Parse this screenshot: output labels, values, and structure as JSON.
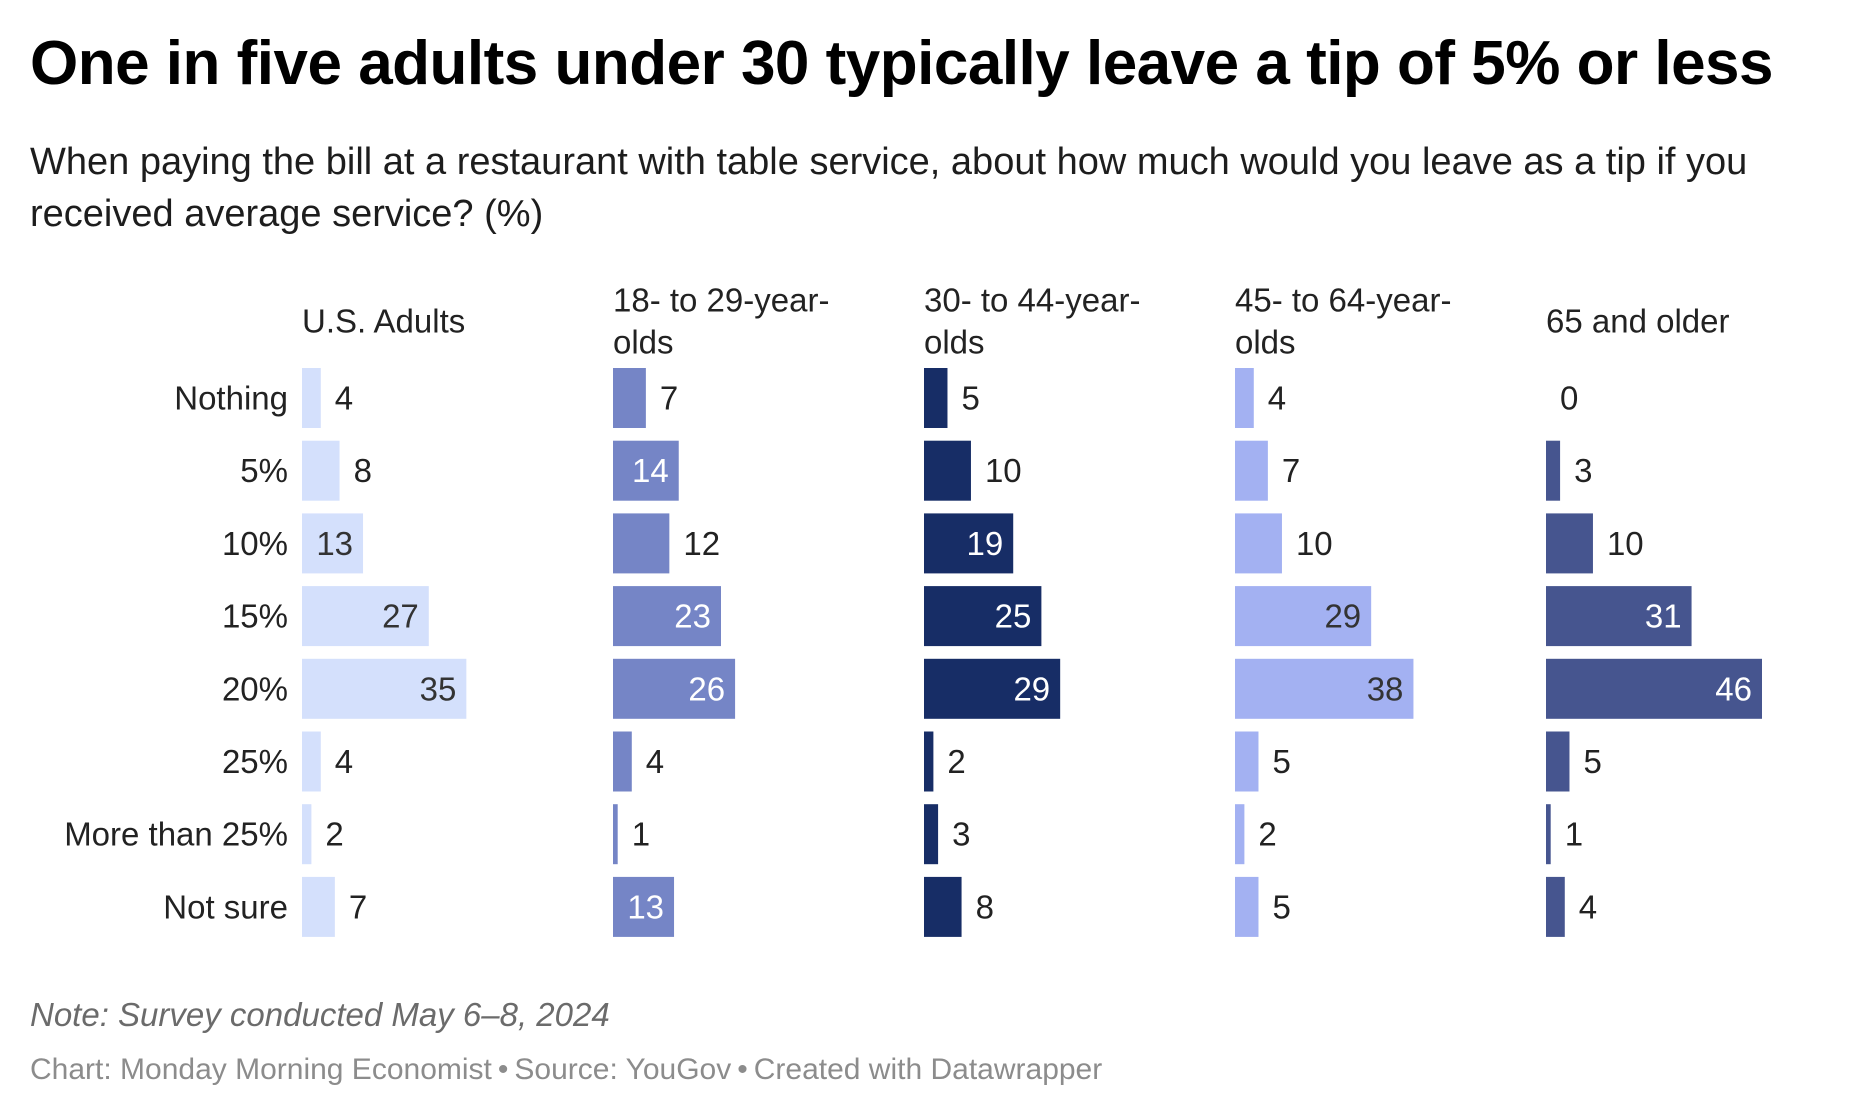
{
  "title": "One in five adults under 30 typically leave a tip of 5% or less",
  "subtitle": "When paying the bill at a restaurant with table service, about how much would you leave as a tip if you received average service? (%)",
  "note": "Note: Survey conducted May 6–8, 2024",
  "footer": {
    "chart_credit": "Chart: Monday Morning Economist",
    "source": "Source: YouGov",
    "tool": "Created with Datawrapper"
  },
  "chart_data": {
    "type": "bar",
    "orientation": "horizontal",
    "layout": "small-multiples",
    "categories": [
      "Nothing",
      "5%",
      "10%",
      "15%",
      "20%",
      "25%",
      "More than 25%",
      "Not sure"
    ],
    "series": [
      {
        "name": "U.S. Adults",
        "name_lines": [
          "U.S. Adults"
        ],
        "color": "#d4e0fc",
        "label_color_inside": "#333333",
        "values": [
          4,
          8,
          13,
          27,
          35,
          4,
          2,
          7
        ]
      },
      {
        "name": "18- to 29-year-olds",
        "name_lines": [
          "18- to 29-year-",
          "olds"
        ],
        "color": "#7585c6",
        "label_color_inside": "#ffffff",
        "values": [
          7,
          14,
          12,
          23,
          26,
          4,
          1,
          13
        ]
      },
      {
        "name": "30- to 44-year-olds",
        "name_lines": [
          "30- to 44-year-",
          "olds"
        ],
        "color": "#172d66",
        "label_color_inside": "#ffffff",
        "values": [
          5,
          10,
          19,
          25,
          29,
          2,
          3,
          8
        ]
      },
      {
        "name": "45- to 64-year-olds",
        "name_lines": [
          "45- to 64-year-",
          "olds"
        ],
        "color": "#a3b1f2",
        "label_color_inside": "#333333",
        "values": [
          4,
          7,
          10,
          29,
          38,
          5,
          2,
          5
        ]
      },
      {
        "name": "65 and older",
        "name_lines": [
          "65 and older"
        ],
        "color": "#46558f",
        "label_color_inside": "#ffffff",
        "values": [
          0,
          3,
          10,
          31,
          46,
          5,
          1,
          4
        ]
      }
    ],
    "value_unit": "%",
    "xlim": [
      0,
      46
    ],
    "grid": false,
    "legend": "none"
  }
}
